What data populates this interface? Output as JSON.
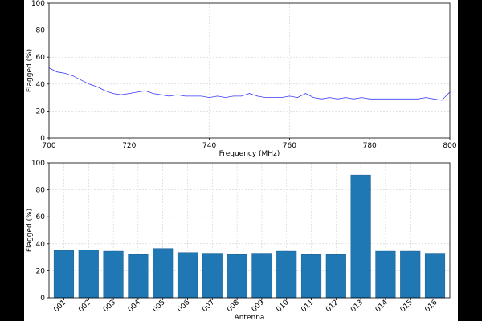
{
  "chart_data": [
    {
      "type": "line",
      "xlabel": "Frequency (MHz)",
      "ylabel": "Flagged (%)",
      "xlim": [
        700,
        800
      ],
      "ylim": [
        0,
        100
      ],
      "xticks": [
        "700",
        "720",
        "740",
        "760",
        "780",
        "800"
      ],
      "yticks": [
        "0",
        "20",
        "40",
        "60",
        "80",
        "100"
      ],
      "grid": true,
      "line_color": "#3b3bff",
      "series": [
        {
          "x": [
            700,
            702,
            704,
            706,
            708,
            710,
            712,
            714,
            716,
            718,
            720,
            722,
            724,
            726,
            728,
            730,
            732,
            734,
            736,
            738,
            740,
            742,
            744,
            746,
            748,
            750,
            752,
            754,
            756,
            758,
            760,
            762,
            764,
            766,
            768,
            770,
            772,
            774,
            776,
            778,
            780,
            782,
            784,
            786,
            788,
            790,
            792,
            794,
            796,
            798,
            800
          ],
          "y": [
            52,
            49,
            48,
            46,
            43,
            40,
            38,
            35,
            33,
            32,
            33,
            34,
            35,
            33,
            32,
            31,
            32,
            31,
            31,
            31,
            30,
            31,
            30,
            31,
            31,
            33,
            31,
            30,
            30,
            30,
            31,
            30,
            33,
            30,
            29,
            30,
            29,
            30,
            29,
            30,
            29,
            29,
            29,
            29,
            29,
            29,
            29,
            30,
            29,
            28,
            34
          ]
        }
      ]
    },
    {
      "type": "bar",
      "xlabel": "Antenna",
      "ylabel": "Flagged (%)",
      "ylim": [
        0,
        100
      ],
      "yticks": [
        "0",
        "20",
        "40",
        "60",
        "80",
        "100"
      ],
      "grid": true,
      "bar_color": "#1f77b4",
      "categories": [
        "001",
        "002",
        "003",
        "004",
        "005",
        "006",
        "007",
        "008",
        "009",
        "010",
        "011",
        "012",
        "013",
        "014",
        "015",
        "016"
      ],
      "values": [
        35,
        35.5,
        34.5,
        32,
        36.5,
        33.5,
        33,
        32,
        33,
        34.5,
        32,
        32,
        91,
        34.5,
        34.5,
        33
      ]
    }
  ]
}
